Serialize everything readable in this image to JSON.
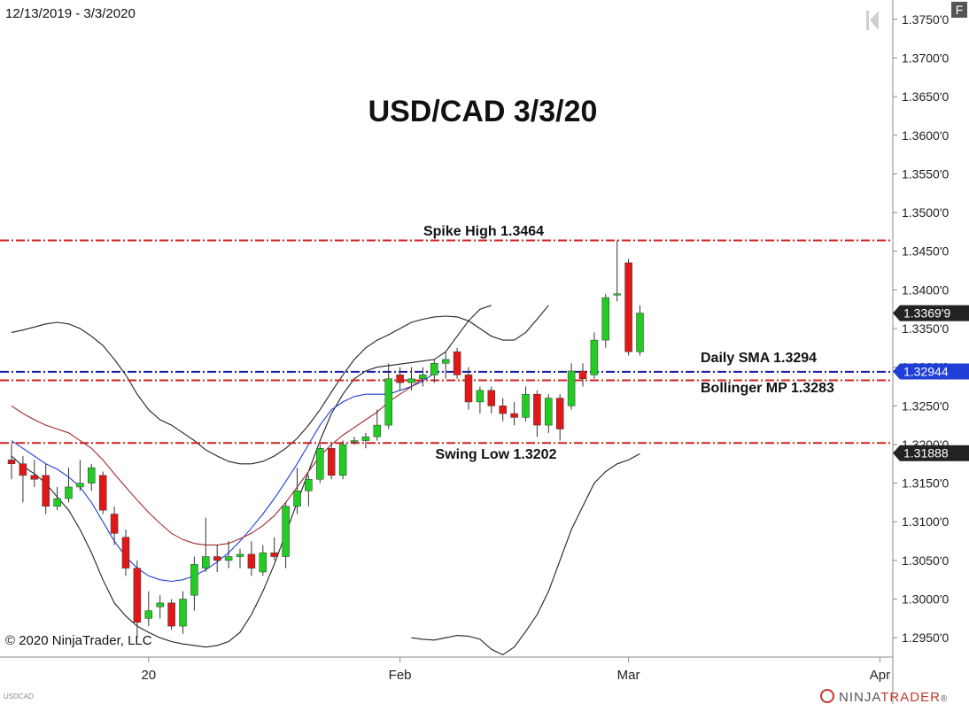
{
  "header": {
    "date_range": "12/13/2019 - 3/3/2020",
    "corner_badge": "F"
  },
  "footer": {
    "copyright": "© 2020 NinjaTrader, LLC",
    "instrument": "USDCAD",
    "brand_prefix": "NINJA",
    "brand_accent": "TRADER",
    "brand_suffix": "®"
  },
  "chart_data": {
    "type": "candlestick",
    "title": "USD/CAD 3/3/20",
    "instrument": "USDCAD",
    "date_range": "12/13/2019 - 3/3/2020",
    "ylim": [
      1.2925,
      1.3775
    ],
    "y_ticks": [
      "1.3750'0",
      "1.3700'0",
      "1.3650'0",
      "1.3600'0",
      "1.3550'0",
      "1.3500'0",
      "1.3450'0",
      "1.3400'0",
      "1.3350'0",
      "1.3300'0",
      "1.3250'0",
      "1.3200'0",
      "1.3150'0",
      "1.3100'0",
      "1.3050'0",
      "1.3000'0",
      "1.2950'0"
    ],
    "y_tick_values": [
      1.375,
      1.37,
      1.365,
      1.36,
      1.355,
      1.35,
      1.345,
      1.34,
      1.335,
      1.33,
      1.325,
      1.32,
      1.315,
      1.31,
      1.305,
      1.3,
      1.295
    ],
    "x_ticks": [
      {
        "label": "20",
        "index": 12
      },
      {
        "label": "Feb",
        "index": 34
      },
      {
        "label": "Mar",
        "index": 54
      },
      {
        "label": "Apr",
        "index": 76
      }
    ],
    "candles": [
      {
        "o": 1.318,
        "h": 1.32,
        "l": 1.3155,
        "c": 1.3175
      },
      {
        "o": 1.3175,
        "h": 1.3185,
        "l": 1.3125,
        "c": 1.316
      },
      {
        "o": 1.316,
        "h": 1.318,
        "l": 1.3145,
        "c": 1.3155
      },
      {
        "o": 1.316,
        "h": 1.3175,
        "l": 1.311,
        "c": 1.312
      },
      {
        "o": 1.312,
        "h": 1.3145,
        "l": 1.3115,
        "c": 1.313
      },
      {
        "o": 1.313,
        "h": 1.317,
        "l": 1.3125,
        "c": 1.3145
      },
      {
        "o": 1.3145,
        "h": 1.318,
        "l": 1.314,
        "c": 1.315
      },
      {
        "o": 1.315,
        "h": 1.3175,
        "l": 1.314,
        "c": 1.317
      },
      {
        "o": 1.316,
        "h": 1.3165,
        "l": 1.311,
        "c": 1.3115
      },
      {
        "o": 1.311,
        "h": 1.312,
        "l": 1.307,
        "c": 1.3085
      },
      {
        "o": 1.308,
        "h": 1.309,
        "l": 1.303,
        "c": 1.304
      },
      {
        "o": 1.304,
        "h": 1.305,
        "l": 1.295,
        "c": 1.297
      },
      {
        "o": 1.2975,
        "h": 1.301,
        "l": 1.2965,
        "c": 1.2985
      },
      {
        "o": 1.299,
        "h": 1.3005,
        "l": 1.2975,
        "c": 1.2995
      },
      {
        "o": 1.2995,
        "h": 1.3,
        "l": 1.296,
        "c": 1.2965
      },
      {
        "o": 1.2965,
        "h": 1.301,
        "l": 1.2955,
        "c": 1.3
      },
      {
        "o": 1.3005,
        "h": 1.3055,
        "l": 1.2985,
        "c": 1.3045
      },
      {
        "o": 1.304,
        "h": 1.3105,
        "l": 1.3035,
        "c": 1.3055
      },
      {
        "o": 1.3055,
        "h": 1.307,
        "l": 1.3035,
        "c": 1.305
      },
      {
        "o": 1.305,
        "h": 1.3075,
        "l": 1.304,
        "c": 1.3055
      },
      {
        "o": 1.3055,
        "h": 1.3065,
        "l": 1.304,
        "c": 1.3058
      },
      {
        "o": 1.3058,
        "h": 1.3075,
        "l": 1.303,
        "c": 1.304
      },
      {
        "o": 1.3035,
        "h": 1.307,
        "l": 1.303,
        "c": 1.306
      },
      {
        "o": 1.306,
        "h": 1.308,
        "l": 1.305,
        "c": 1.3055
      },
      {
        "o": 1.3055,
        "h": 1.3125,
        "l": 1.304,
        "c": 1.312
      },
      {
        "o": 1.312,
        "h": 1.317,
        "l": 1.311,
        "c": 1.314
      },
      {
        "o": 1.314,
        "h": 1.316,
        "l": 1.312,
        "c": 1.3155
      },
      {
        "o": 1.3155,
        "h": 1.32,
        "l": 1.315,
        "c": 1.3195
      },
      {
        "o": 1.3195,
        "h": 1.32,
        "l": 1.3155,
        "c": 1.316
      },
      {
        "o": 1.316,
        "h": 1.3205,
        "l": 1.3155,
        "c": 1.32
      },
      {
        "o": 1.3205,
        "h": 1.321,
        "l": 1.32,
        "c": 1.3205
      },
      {
        "o": 1.3205,
        "h": 1.3215,
        "l": 1.3195,
        "c": 1.321
      },
      {
        "o": 1.321,
        "h": 1.3245,
        "l": 1.3205,
        "c": 1.3225
      },
      {
        "o": 1.3225,
        "h": 1.3305,
        "l": 1.322,
        "c": 1.3285
      },
      {
        "o": 1.329,
        "h": 1.33,
        "l": 1.327,
        "c": 1.328
      },
      {
        "o": 1.328,
        "h": 1.33,
        "l": 1.327,
        "c": 1.3285
      },
      {
        "o": 1.3285,
        "h": 1.33,
        "l": 1.3275,
        "c": 1.329
      },
      {
        "o": 1.329,
        "h": 1.331,
        "l": 1.328,
        "c": 1.3305
      },
      {
        "o": 1.3305,
        "h": 1.332,
        "l": 1.3285,
        "c": 1.331
      },
      {
        "o": 1.332,
        "h": 1.3325,
        "l": 1.3285,
        "c": 1.329
      },
      {
        "o": 1.329,
        "h": 1.33,
        "l": 1.3245,
        "c": 1.3255
      },
      {
        "o": 1.3255,
        "h": 1.3275,
        "l": 1.324,
        "c": 1.327
      },
      {
        "o": 1.327,
        "h": 1.3275,
        "l": 1.324,
        "c": 1.325
      },
      {
        "o": 1.325,
        "h": 1.326,
        "l": 1.323,
        "c": 1.324
      },
      {
        "o": 1.324,
        "h": 1.3255,
        "l": 1.3225,
        "c": 1.3235
      },
      {
        "o": 1.3235,
        "h": 1.3275,
        "l": 1.323,
        "c": 1.3265
      },
      {
        "o": 1.3265,
        "h": 1.327,
        "l": 1.321,
        "c": 1.3225
      },
      {
        "o": 1.3225,
        "h": 1.3265,
        "l": 1.3215,
        "c": 1.326
      },
      {
        "o": 1.326,
        "h": 1.3265,
        "l": 1.3205,
        "c": 1.322
      },
      {
        "o": 1.325,
        "h": 1.3305,
        "l": 1.3245,
        "c": 1.3295
      },
      {
        "o": 1.3295,
        "h": 1.3305,
        "l": 1.3275,
        "c": 1.3285
      },
      {
        "o": 1.329,
        "h": 1.3345,
        "l": 1.3285,
        "c": 1.3335
      },
      {
        "o": 1.3335,
        "h": 1.3395,
        "l": 1.3325,
        "c": 1.339
      },
      {
        "o": 1.3395,
        "h": 1.3464,
        "l": 1.3385,
        "c": 1.3395
      },
      {
        "o": 1.3435,
        "h": 1.344,
        "l": 1.3315,
        "c": 1.332
      },
      {
        "o": 1.332,
        "h": 1.338,
        "l": 1.3315,
        "c": 1.337
      }
    ],
    "indicators": [
      {
        "name": "upper_band",
        "color": "#222222",
        "values": [
          1.3345,
          1.3348,
          1.3352,
          1.3356,
          1.3358,
          1.3356,
          1.335,
          1.334,
          1.3328,
          1.331,
          1.329,
          1.3265,
          1.3245,
          1.3232,
          1.3225,
          1.3215,
          1.3205,
          1.3193,
          1.3185,
          1.3178,
          1.3175,
          1.3175,
          1.3178,
          1.3185,
          1.3195,
          1.3208,
          1.3225,
          1.3245,
          1.3268,
          1.329,
          1.331,
          1.3325,
          1.3335,
          1.3342,
          1.335,
          1.3358,
          1.3362,
          1.3365,
          1.3366,
          1.3365,
          1.336,
          1.335,
          1.334,
          1.3335,
          1.3335,
          1.3345,
          1.3362,
          1.338
        ]
      },
      {
        "name": "bollinger_mp",
        "color": "#222222",
        "values": [
          1.3185,
          1.3172,
          1.3162,
          1.315,
          1.3132,
          1.3115,
          1.309,
          1.306,
          1.3025,
          1.2995,
          1.2978,
          1.2965,
          1.2957,
          1.295,
          1.2945,
          1.2942,
          1.294,
          1.2938,
          1.294,
          1.2945,
          1.2957,
          1.298,
          1.301,
          1.3045,
          1.3085,
          1.3125,
          1.3165,
          1.3205,
          1.324,
          1.3265,
          1.3285,
          1.3295,
          1.33,
          1.3302,
          1.3304,
          1.3306,
          1.3308,
          1.331,
          1.332,
          1.334,
          1.336,
          1.3375,
          1.338
        ]
      },
      {
        "name": "sma_fast",
        "color": "#1f3fd6",
        "values": [
          1.3205,
          1.3195,
          1.3185,
          1.3175,
          1.3168,
          1.3158,
          1.3145,
          1.3125,
          1.31,
          1.3075,
          1.3055,
          1.304,
          1.303,
          1.3025,
          1.3023,
          1.3025,
          1.303,
          1.3038,
          1.3048,
          1.306,
          1.3075,
          1.3092,
          1.311,
          1.313,
          1.3152,
          1.3175,
          1.32,
          1.3225,
          1.3245,
          1.3255,
          1.3262,
          1.3265,
          1.3265,
          1.3265,
          1.327,
          1.3275,
          1.3282,
          1.3292
        ]
      },
      {
        "name": "sma_slow",
        "color": "#a52a2a",
        "values": [
          1.325,
          1.324,
          1.3232,
          1.3225,
          1.322,
          1.3215,
          1.3205,
          1.3195,
          1.318,
          1.3162,
          1.3145,
          1.3128,
          1.3112,
          1.3098,
          1.3085,
          1.3077,
          1.3072,
          1.307,
          1.307,
          1.3072,
          1.3078,
          1.3085,
          1.3095,
          1.3108,
          1.3125,
          1.3145,
          1.3165,
          1.3185,
          1.32,
          1.3212,
          1.3222,
          1.3232,
          1.3242,
          1.3255,
          1.3265,
          1.3275,
          1.3285
        ]
      },
      {
        "name": "lower_band",
        "color": "#222222",
        "values": [
          1.295,
          1.2948,
          1.2947,
          1.295,
          1.2953,
          1.2952,
          1.2948,
          1.2935,
          1.2928,
          1.2938,
          1.2958,
          1.298,
          1.301,
          1.305,
          1.309,
          1.312,
          1.315,
          1.3165,
          1.3175,
          1.318,
          1.3188
        ]
      }
    ],
    "levels": [
      {
        "label": "Spike High 1.3464",
        "value": 1.3464,
        "color": "#d42020",
        "style": "dash-dot"
      },
      {
        "label": "Daily SMA 1.3294",
        "value": 1.3294,
        "color": "#1a1aaa",
        "style": "dash-dot"
      },
      {
        "label": "Bollinger MP 1.3283",
        "value": 1.3283,
        "color": "#d42020",
        "style": "dash-dot"
      },
      {
        "label": "Swing Low 1.3202",
        "value": 1.3202,
        "color": "#d42020",
        "style": "dash-dot"
      }
    ],
    "price_tags": [
      {
        "label": "1.3369'9",
        "value": 1.33699,
        "color": "#222222"
      },
      {
        "label": "1.32944",
        "value": 1.32944,
        "color": "#1f3fd6"
      },
      {
        "label": "1.31888",
        "value": 1.31888,
        "color": "#222222"
      }
    ],
    "colors": {
      "up": "#22cc22",
      "down": "#e01818",
      "wick": "#333333"
    }
  }
}
